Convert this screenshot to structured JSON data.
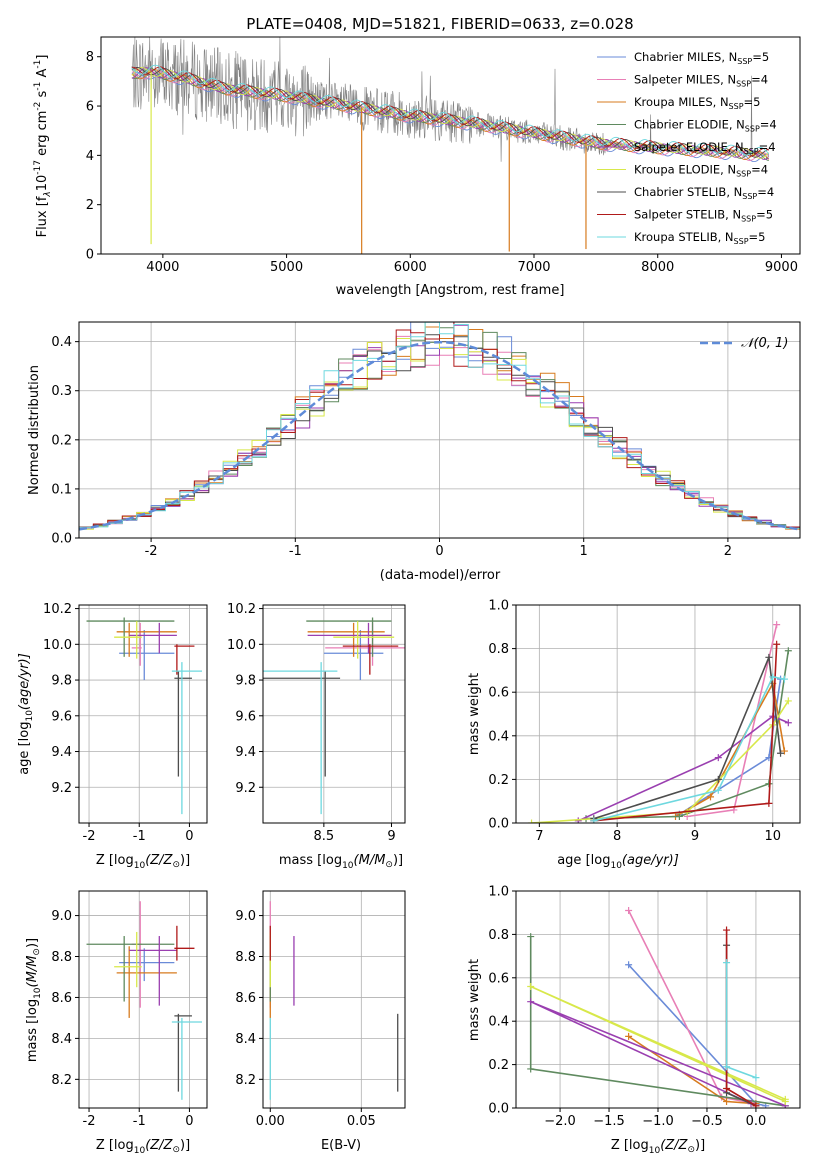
{
  "title": "PLATE=0408, MJD=51821, FIBERID=0633, z=0.028",
  "colors": {
    "Chabrier MILES": "#6a8bd8",
    "Salpeter MILES": "#e87fb6",
    "Kroupa MILES": "#d77b1f",
    "Chabrier ELODIE": "#5f8a5f",
    "Salpeter ELODIE": "#9a3fb0",
    "Kroupa ELODIE": "#d8e84a",
    "Chabrier STELIB": "#4d4d4d",
    "Salpeter STELIB": "#b01a1a",
    "Kroupa STELIB": "#6ed8df",
    "data": "#808080",
    "normal": "#5e8bd8"
  },
  "chart_data": [
    {
      "id": "spectrum",
      "type": "line",
      "xlabel": "wavelength [Angstrom, rest frame]",
      "ylabel": "Flux [f",
      "ylabel_sub": "λ",
      "ylabel_mid": "10",
      "ylabel_sup1": "-17",
      "ylabel_mid2": " erg cm",
      "ylabel_sup2": "-2",
      "ylabel_mid3": " s",
      "ylabel_sup3": "-1",
      "ylabel_mid4": " A",
      "ylabel_sup4": "-1",
      "ylabel_end": "]",
      "xlim": [
        3500,
        9150
      ],
      "ylim": [
        0,
        8.8
      ],
      "xticks": [
        4000,
        5000,
        6000,
        7000,
        8000,
        9000
      ],
      "yticks": [
        0,
        2,
        4,
        6,
        8
      ],
      "grid": false,
      "legend": [
        {
          "name": "Chabrier MILES",
          "nssp": "5"
        },
        {
          "name": "Salpeter MILES",
          "nssp": "4"
        },
        {
          "name": "Kroupa MILES",
          "nssp": "5"
        },
        {
          "name": "Chabrier ELODIE",
          "nssp": "4"
        },
        {
          "name": "Salpeter ELODIE",
          "nssp": "4"
        },
        {
          "name": "Kroupa ELODIE",
          "nssp": "4"
        },
        {
          "name": "Chabrier STELIB",
          "nssp": "4"
        },
        {
          "name": "Salpeter STELIB",
          "nssp": "5"
        },
        {
          "name": "Kroupa STELIB",
          "nssp": "5"
        }
      ],
      "legend_n_prefix": "N",
      "legend_n_sub": "SSP",
      "continuum": {
        "x": [
          3750,
          3900,
          4000,
          4200,
          4500,
          5000,
          5500,
          6000,
          6500,
          7000,
          7500,
          8000,
          8500,
          8900
        ],
        "y": [
          7.3,
          7.4,
          7.3,
          7.1,
          6.7,
          6.4,
          6.0,
          5.6,
          5.3,
          4.9,
          4.5,
          4.3,
          4.15,
          4.0
        ]
      }
    },
    {
      "id": "residuals",
      "type": "line",
      "xlabel": "(data-model)/error",
      "ylabel": "Normed distribution",
      "xlim": [
        -2.5,
        2.5
      ],
      "ylim": [
        0,
        0.44
      ],
      "xticks": [
        -2,
        -1,
        0,
        1,
        2
      ],
      "yticks": [
        0.0,
        0.1,
        0.2,
        0.3,
        0.4
      ],
      "grid": true,
      "legend": "𝒩(0, 1)",
      "legend_position": "top-right",
      "bin_width": 0.1
    },
    {
      "id": "age-Z",
      "type": "scatter",
      "xlabel": "Z [log",
      "xlabel_sub": "10",
      "xlabel_end": "(Z/Z",
      "xlabel_sun": "⊙",
      "xlabel_close": ")]",
      "ylabel": "age  [log",
      "ylabel_sub": "10",
      "ylabel_end": "(age/yr)]",
      "xlim": [
        -2.2,
        0.35
      ],
      "ylim": [
        9.0,
        10.22
      ],
      "xticks": [
        -2,
        -1,
        0
      ],
      "yticks": [
        9.2,
        9.4,
        9.6,
        9.8,
        10.0,
        10.2
      ],
      "grid": true
    },
    {
      "id": "age-mass",
      "type": "scatter",
      "xlabel": "mass [log",
      "xlabel_sub": "10",
      "xlabel_end": "(M/M",
      "xlabel_sun": "⊙",
      "xlabel_close": ")]",
      "xlim": [
        8.05,
        9.1
      ],
      "ylim": [
        9.0,
        10.22
      ],
      "xticks": [
        8.5,
        9.0
      ],
      "yticks": [
        9.2,
        9.4,
        9.6,
        9.8,
        10.0,
        10.2
      ],
      "grid": true
    },
    {
      "id": "mw-age",
      "type": "line",
      "xlabel": "age  [log",
      "xlabel_sub": "10",
      "xlabel_end": "(age/yr)]",
      "ylabel": "mass weight",
      "xlim": [
        6.7,
        10.35
      ],
      "ylim": [
        0,
        1.0
      ],
      "xticks": [
        7,
        8,
        9,
        10
      ],
      "yticks": [
        0.0,
        0.2,
        0.4,
        0.6,
        0.8,
        1.0
      ],
      "grid": true
    },
    {
      "id": "mass-Z",
      "type": "scatter",
      "xlabel": "Z [log",
      "xlabel_sub": "10",
      "xlabel_end": "(Z/Z",
      "xlabel_sun": "⊙",
      "xlabel_close": ")]",
      "ylabel": "mass [log",
      "ylabel_sub": "10",
      "ylabel_end": "(M/M",
      "ylabel_sun": "⊙",
      "ylabel_close": ")]",
      "xlim": [
        -2.2,
        0.35
      ],
      "ylim": [
        8.06,
        9.12
      ],
      "xticks": [
        -2,
        -1,
        0
      ],
      "yticks": [
        8.2,
        8.4,
        8.6,
        8.8,
        9.0
      ],
      "grid": true
    },
    {
      "id": "mass-EBV",
      "type": "scatter",
      "xlabel": "E(B-V)",
      "xlim": [
        -0.004,
        0.074
      ],
      "ylim": [
        8.06,
        9.12
      ],
      "xticks": [
        0.0,
        0.05
      ],
      "xtick_labels": [
        "0.00",
        "0.05"
      ],
      "yticks": [
        8.2,
        8.4,
        8.6,
        8.8,
        9.0
      ],
      "grid": true
    },
    {
      "id": "mw-Z",
      "type": "line",
      "xlabel": "Z [log",
      "xlabel_sub": "10",
      "xlabel_end": "(Z/Z",
      "xlabel_sun": "⊙",
      "xlabel_close": ")]",
      "ylabel": "mass weight",
      "xlim": [
        -2.45,
        0.45
      ],
      "ylim": [
        0,
        1.0
      ],
      "xticks": [
        -2.0,
        -1.5,
        -1.0,
        -0.5,
        0.0
      ],
      "xtick_labels": [
        "−2.0",
        "−1.5",
        "−1.0",
        "−0.5",
        "0.0"
      ],
      "yticks": [
        0.0,
        0.2,
        0.4,
        0.6,
        0.8,
        1.0
      ],
      "grid": true
    }
  ],
  "models": [
    {
      "name": "Chabrier MILES",
      "age": 9.95,
      "age_lo": 9.8,
      "age_hi": 10.08,
      "Z": -0.9,
      "Z_lo": -1.4,
      "Z_hi": -0.3,
      "mass": 8.77,
      "mass_lo": 8.68,
      "mass_hi": 8.84,
      "ebv": 0.0,
      "ages": [
        8.8,
        9.95,
        10.1
      ],
      "weights": [
        0.04,
        0.3,
        0.66
      ],
      "Zs": [
        0.1,
        0.0,
        -1.3
      ],
      "Zw": [
        0.01,
        0.02,
        0.66
      ]
    },
    {
      "name": "Salpeter MILES",
      "age": 9.98,
      "age_lo": 9.88,
      "age_hi": 10.12,
      "Z": -0.98,
      "Z_lo": -1.15,
      "Z_hi": -0.95,
      "mass": 8.86,
      "mass_lo": 8.55,
      "mass_hi": 9.07,
      "ebv": 0.0,
      "ages": [
        8.9,
        9.5,
        10.05
      ],
      "weights": [
        0.03,
        0.06,
        0.91
      ],
      "Zs": [
        0.0,
        -0.35,
        -1.3
      ],
      "Zw": [
        0.02,
        0.05,
        0.91
      ]
    },
    {
      "name": "Kroupa MILES",
      "age": 10.07,
      "age_lo": 9.93,
      "age_hi": 10.12,
      "Z": -1.2,
      "Z_lo": -1.45,
      "Z_hi": -0.25,
      "mass": 8.72,
      "mass_lo": 8.5,
      "mass_hi": 8.85,
      "ebv": 0.0,
      "ages": [
        8.75,
        9.2,
        10.0,
        10.15
      ],
      "weights": [
        0.03,
        0.12,
        0.64,
        0.33
      ],
      "Zs": [
        0.0,
        -0.3,
        -1.3
      ],
      "Zw": [
        0.02,
        0.03,
        0.33
      ]
    },
    {
      "name": "Chabrier ELODIE",
      "age": 10.13,
      "age_lo": 9.93,
      "age_hi": 10.15,
      "Z": -1.3,
      "Z_lo": -2.05,
      "Z_hi": -0.3,
      "mass": 8.86,
      "mass_lo": 8.58,
      "mass_hi": 8.9,
      "ebv": 0.0,
      "ages": [
        7.6,
        8.8,
        9.95,
        10.2
      ],
      "weights": [
        0.02,
        0.03,
        0.18,
        0.79
      ],
      "Zs": [
        0.3,
        -2.3,
        -2.3
      ],
      "Zw": [
        0.01,
        0.18,
        0.79
      ]
    },
    {
      "name": "Salpeter ELODIE",
      "age": 10.05,
      "age_lo": 9.95,
      "age_hi": 10.12,
      "Z": -0.6,
      "Z_lo": -1.2,
      "Z_hi": -0.25,
      "mass": 8.83,
      "mass_lo": 8.56,
      "mass_hi": 8.9,
      "ebv": 0.013,
      "ages": [
        7.5,
        9.3,
        10.0,
        10.2
      ],
      "weights": [
        0.01,
        0.3,
        0.49,
        0.46
      ],
      "Zs": [
        0.3,
        -2.3,
        -0.05
      ],
      "Zw": [
        0.01,
        0.49,
        0.02
      ]
    },
    {
      "name": "Kroupa ELODIE",
      "age": 10.04,
      "age_lo": 9.92,
      "age_hi": 10.13,
      "Z": -1.05,
      "Z_lo": -1.5,
      "Z_hi": -0.95,
      "mass": 8.75,
      "mass_lo": 8.65,
      "mass_hi": 8.92,
      "ebv": 0.0,
      "ages": [
        6.9,
        8.9,
        10.0,
        10.2
      ],
      "weights": [
        0.0,
        0.05,
        0.45,
        0.56
      ],
      "Zs": [
        0.3,
        -2.3,
        0.3
      ],
      "Zw": [
        0.04,
        0.56,
        0.03
      ]
    },
    {
      "name": "Chabrier STELIB",
      "age": 9.81,
      "age_lo": 9.26,
      "age_hi": 9.85,
      "Z": -0.22,
      "Z_lo": -0.3,
      "Z_hi": 0.05,
      "mass": 8.51,
      "mass_lo": 8.14,
      "mass_hi": 8.52,
      "ebv": 0.07,
      "ages": [
        7.7,
        9.3,
        9.95,
        10.1
      ],
      "weights": [
        0.02,
        0.2,
        0.76,
        0.32
      ],
      "Zs": [
        -0.3,
        -0.3,
        0.0
      ],
      "Zw": [
        0.75,
        0.07,
        0.01
      ]
    },
    {
      "name": "Salpeter STELIB",
      "age": 9.99,
      "age_lo": 9.83,
      "age_hi": 10.0,
      "Z": -0.25,
      "Z_lo": -0.3,
      "Z_hi": 0.1,
      "mass": 8.84,
      "mass_lo": 8.78,
      "mass_hi": 8.95,
      "ebv": 0.0,
      "ages": [
        7.7,
        9.95,
        10.05
      ],
      "weights": [
        0.01,
        0.09,
        0.82
      ],
      "Zs": [
        -0.3,
        -0.3,
        0.0
      ],
      "Zw": [
        0.82,
        0.09,
        0.01
      ]
    },
    {
      "name": "Kroupa STELIB",
      "age": 9.85,
      "age_lo": 9.05,
      "age_hi": 9.9,
      "Z": -0.15,
      "Z_lo": -0.35,
      "Z_hi": 0.25,
      "mass": 8.48,
      "mass_lo": 8.1,
      "mass_hi": 8.5,
      "ebv": 0.0,
      "ages": [
        7.7,
        9.3,
        10.0,
        10.15
      ],
      "weights": [
        0.01,
        0.15,
        0.67,
        0.66
      ],
      "Zs": [
        -0.3,
        -0.3,
        0.0
      ],
      "Zw": [
        0.67,
        0.19,
        0.14
      ]
    }
  ]
}
